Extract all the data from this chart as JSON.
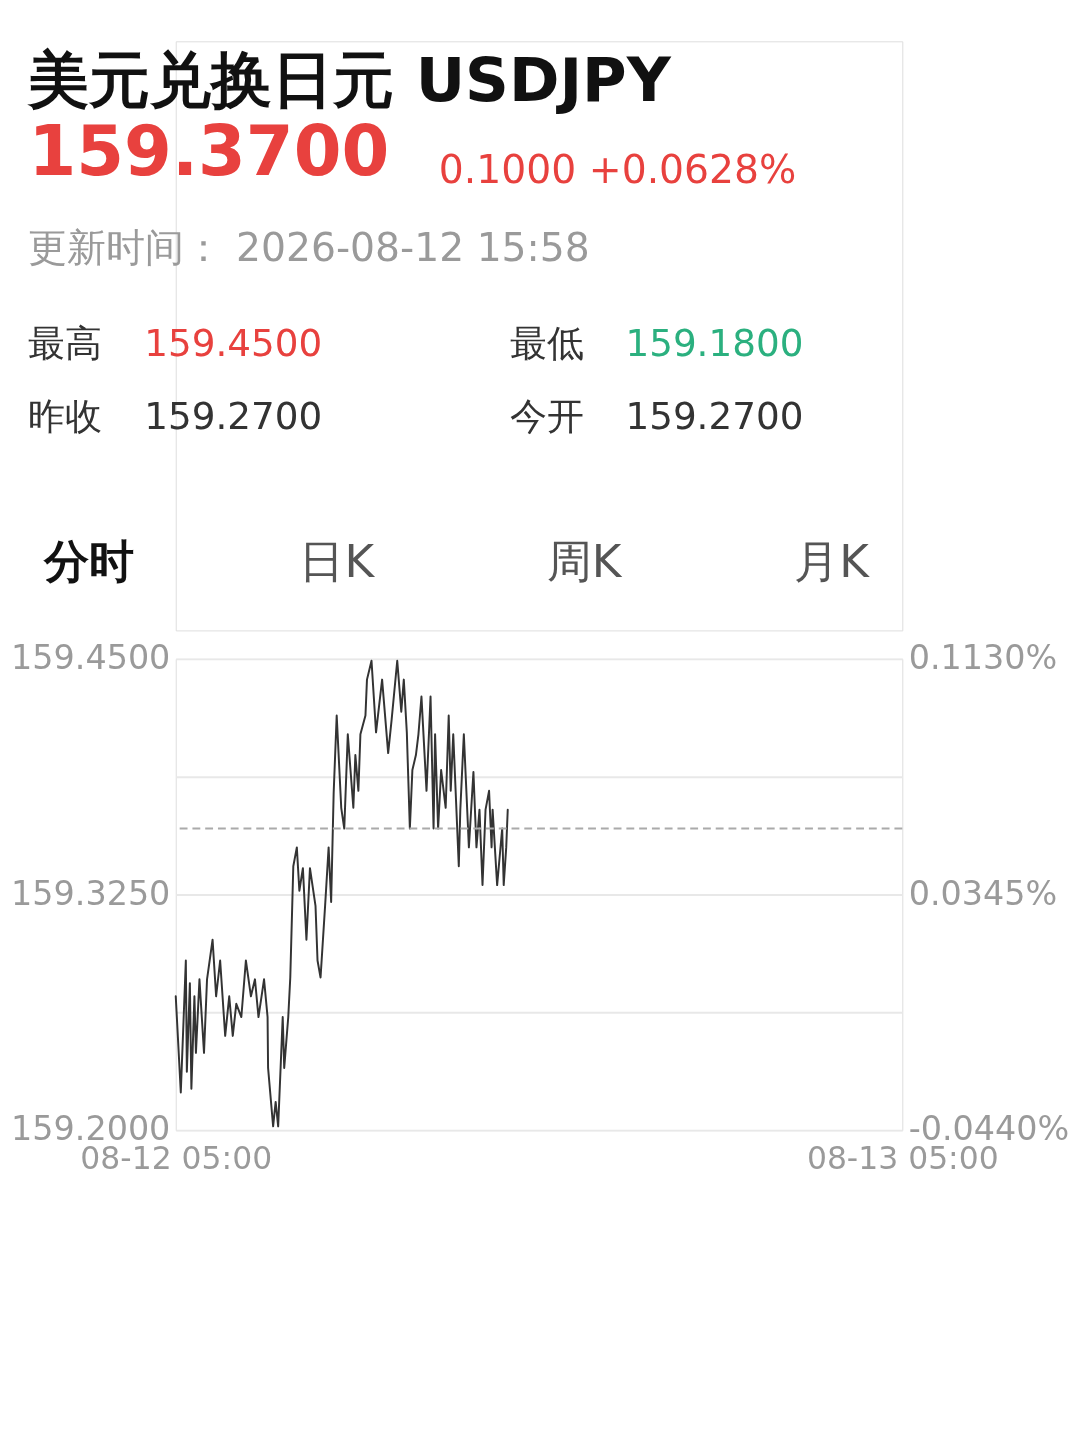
{
  "chart_data": {
    "type": "line",
    "title": "美元兑换日元 USDJPY",
    "annotations": [
      "159.3700",
      "0.1000 +0.0628%",
      "更新时间： 2026-08-12 15:58",
      "最高",
      "159.4500",
      "最低",
      "159.1800",
      "昨收",
      "159.2700",
      "今开",
      "159.2700",
      "分时",
      "日K",
      "周K",
      "月K"
    ],
    "x": [
      "2026-08-12T05:00",
      "2026-08-12T05:10",
      "2026-08-12T05:20",
      "2026-08-12T05:22",
      "2026-08-12T05:28",
      "2026-08-12T05:31",
      "2026-08-12T05:37",
      "2026-08-12T05:40",
      "2026-08-12T05:47",
      "2026-08-12T05:56",
      "2026-08-12T06:02",
      "2026-08-12T06:13",
      "2026-08-12T06:20",
      "2026-08-12T06:28",
      "2026-08-12T06:38",
      "2026-08-12T06:46",
      "2026-08-12T06:53",
      "2026-08-12T07:00",
      "2026-08-12T07:10",
      "2026-08-12T07:19",
      "2026-08-12T07:29",
      "2026-08-12T07:37",
      "2026-08-12T07:44",
      "2026-08-12T07:55",
      "2026-08-12T08:02",
      "2026-08-12T08:03",
      "2026-08-12T08:13",
      "2026-08-12T08:18",
      "2026-08-12T08:23",
      "2026-08-12T08:32",
      "2026-08-12T08:35",
      "2026-08-12T08:43",
      "2026-08-12T08:47",
      "2026-08-12T08:53",
      "2026-08-12T09:00",
      "2026-08-12T09:05",
      "2026-08-12T09:12",
      "2026-08-12T09:19",
      "2026-08-12T09:26",
      "2026-08-12T09:37",
      "2026-08-12T09:41",
      "2026-08-12T09:47",
      "2026-08-12T09:56",
      "2026-08-12T10:03",
      "2026-08-12T10:08",
      "2026-08-12T10:13",
      "2026-08-12T10:19",
      "2026-08-12T10:28",
      "2026-08-12T10:34",
      "2026-08-12T10:41",
      "2026-08-12T10:52",
      "2026-08-12T10:56",
      "2026-08-12T11:02",
      "2026-08-12T11:06",
      "2026-08-12T11:16",
      "2026-08-12T11:19",
      "2026-08-12T11:28",
      "2026-08-12T11:37",
      "2026-08-12T11:49",
      "2026-08-12T12:01",
      "2026-08-12T12:08",
      "2026-08-12T12:19",
      "2026-08-12T12:27",
      "2026-08-12T12:32",
      "2026-08-12T12:38",
      "2026-08-12T12:44",
      "2026-08-12T12:49",
      "2026-08-12T12:56",
      "2026-08-12T13:01",
      "2026-08-12T13:07",
      "2026-08-12T13:17",
      "2026-08-12T13:25",
      "2026-08-12T13:31",
      "2026-08-12T13:34",
      "2026-08-12T13:40",
      "2026-08-12T13:46",
      "2026-08-12T13:55",
      "2026-08-12T14:01",
      "2026-08-12T14:05",
      "2026-08-12T14:10",
      "2026-08-12T14:21",
      "2026-08-12T14:24",
      "2026-08-12T14:31",
      "2026-08-12T14:41",
      "2026-08-12T14:50",
      "2026-08-12T14:56",
      "2026-08-12T15:02",
      "2026-08-12T15:08",
      "2026-08-12T15:14",
      "2026-08-12T15:21",
      "2026-08-12T15:26",
      "2026-08-12T15:28",
      "2026-08-12T15:37",
      "2026-08-12T15:47",
      "2026-08-12T15:50",
      "2026-08-12T15:55",
      "2026-08-12T15:58"
    ],
    "series": [
      {
        "color": "#333333",
        "values": [
          159.271,
          159.22,
          159.29,
          159.231,
          159.278,
          159.222,
          159.271,
          159.241,
          159.28,
          159.241,
          159.28,
          159.301,
          159.271,
          159.29,
          159.25,
          159.271,
          159.25,
          159.267,
          159.26,
          159.29,
          159.271,
          159.28,
          159.26,
          159.28,
          159.26,
          159.233,
          159.202,
          159.215,
          159.202,
          159.26,
          159.233,
          159.26,
          159.281,
          159.34,
          159.35,
          159.327,
          159.339,
          159.301,
          159.339,
          159.319,
          159.29,
          159.281,
          159.319,
          159.35,
          159.321,
          159.379,
          159.42,
          159.371,
          159.36,
          159.41,
          159.371,
          159.399,
          159.38,
          159.41,
          159.42,
          159.439,
          159.449,
          159.411,
          159.439,
          159.4,
          159.418,
          159.449,
          159.422,
          159.439,
          159.411,
          159.36,
          159.391,
          159.399,
          159.41,
          159.43,
          159.38,
          159.43,
          159.36,
          159.41,
          159.36,
          159.391,
          159.371,
          159.42,
          159.38,
          159.41,
          159.34,
          159.37,
          159.41,
          159.35,
          159.39,
          159.35,
          159.37,
          159.33,
          159.37,
          159.38,
          159.35,
          159.37,
          159.33,
          159.36,
          159.33,
          159.35,
          159.37
        ]
      }
    ],
    "xlim": [
      "2026-08-12T05:00",
      "2026-08-13T05:00"
    ],
    "xticks": [
      {
        "value": "2026-08-12T05:00",
        "label": "08-12 05:00"
      },
      {
        "value": "2026-08-13T05:00",
        "label": "08-13 05:00"
      }
    ],
    "ylim": [
      159.2,
      159.45
    ],
    "yticks": [
      {
        "value": 159.2,
        "label": "159.2000"
      },
      {
        "value": 159.2625,
        "label": null
      },
      {
        "value": 159.325,
        "label": "159.3250"
      },
      {
        "value": 159.3875,
        "label": null
      },
      {
        "value": 159.45,
        "label": "159.4500"
      }
    ],
    "y2lim": [
      -0.044,
      0.113
    ],
    "y2ticks": [
      {
        "value": -0.044,
        "label": "-0.0440%"
      },
      {
        "value": 0.0345,
        "label": "0.0345%"
      },
      {
        "value": 0.113,
        "label": "0.1130%"
      }
    ],
    "ref_lines": [
      {
        "axis": "y",
        "value": 159.36,
        "color": "#aaaaaa",
        "line_style": "dashed"
      }
    ],
    "grid": "y",
    "marker": "none",
    "line_style": "solid"
  }
}
